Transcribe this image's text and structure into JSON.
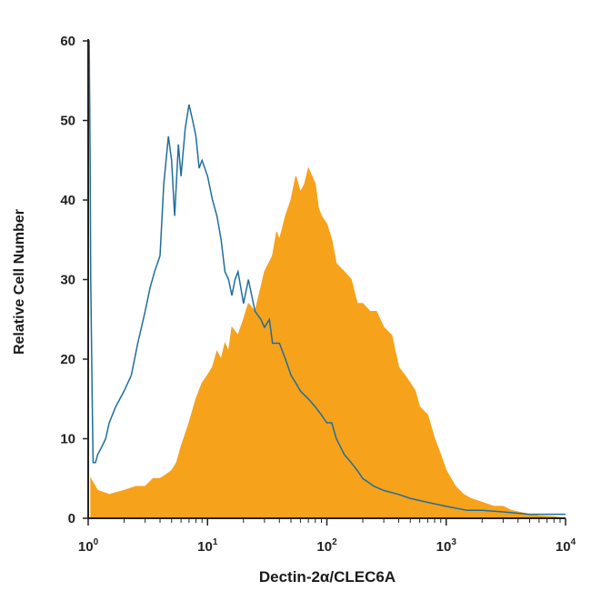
{
  "chart_data": {
    "type": "area",
    "title": "",
    "xlabel": "Dectin-2α/CLEC6A",
    "ylabel": "Relative Cell Number",
    "x_scale": "log",
    "xlim": [
      1,
      10000
    ],
    "ylim": [
      0,
      60
    ],
    "x_ticks": [
      {
        "base": "10",
        "exp": "0"
      },
      {
        "base": "10",
        "exp": "1"
      },
      {
        "base": "10",
        "exp": "2"
      },
      {
        "base": "10",
        "exp": "3"
      },
      {
        "base": "10",
        "exp": "4"
      }
    ],
    "y_ticks": [
      "0",
      "10",
      "20",
      "30",
      "40",
      "50",
      "60"
    ],
    "grid": false,
    "colors": {
      "stained": "#f7a21b",
      "isotype": "#1f6e9c",
      "axis": "#222222"
    },
    "series": [
      {
        "style": "filled",
        "x": [
          1.05,
          1.2,
          1.5,
          2.0,
          2.5,
          3.0,
          3.5,
          4.0,
          4.5,
          5.0,
          5.5,
          6.0,
          7.0,
          8.0,
          9.0,
          10.0,
          11.0,
          12.0,
          13.0,
          14.0,
          15.0,
          16.0,
          18.0,
          20.0,
          22.0,
          25.0,
          28.0,
          30.0,
          35.0,
          38.0,
          40.0,
          45.0,
          50.0,
          55.0,
          60.0,
          65.0,
          70.0,
          75.0,
          80.0,
          85.0,
          90.0,
          100.0,
          110.0,
          120.0,
          140.0,
          160.0,
          180.0,
          200.0,
          230.0,
          260.0,
          300.0,
          350.0,
          400.0,
          450.0,
          500.0,
          550.0,
          600.0,
          700.0,
          800.0,
          900.0,
          1000.0,
          1200.0,
          1400.0,
          1600.0,
          2000.0,
          2500.0,
          3000.0,
          3500.0,
          4000.0,
          5000.0,
          6000.0,
          8000.0,
          10000.0
        ],
        "values": [
          5,
          3.5,
          3,
          3.5,
          4,
          4,
          5,
          5,
          5.5,
          6,
          7,
          9,
          12,
          15,
          17,
          18,
          19,
          21,
          20,
          22,
          21,
          24,
          23,
          25,
          27,
          26,
          29,
          31,
          33,
          36,
          35,
          38,
          40,
          43,
          41,
          42,
          44,
          43,
          42,
          39,
          38,
          37,
          35,
          32,
          31,
          30,
          27,
          27,
          26,
          26,
          24,
          23,
          19,
          18,
          17,
          16,
          14,
          13,
          10,
          8,
          6,
          4,
          3,
          2.5,
          2,
          1.5,
          1.5,
          1,
          0.8,
          0.5,
          0.3,
          0.2,
          0
        ]
      },
      {
        "style": "line",
        "x": [
          1.0,
          1.02,
          1.04,
          1.05,
          1.08,
          1.1,
          1.15,
          1.2,
          1.3,
          1.4,
          1.5,
          1.7,
          2.0,
          2.3,
          2.6,
          3.0,
          3.3,
          3.6,
          4.0,
          4.3,
          4.7,
          5.0,
          5.3,
          5.7,
          6.0,
          6.5,
          7.0,
          7.5,
          8.0,
          8.5,
          9.0,
          10.0,
          11.0,
          12.0,
          13.0,
          14.0,
          15.0,
          16.0,
          17.0,
          18.0,
          20.0,
          22.0,
          25.0,
          28.0,
          30.0,
          33.0,
          35.0,
          40.0,
          45.0,
          50.0,
          55.0,
          60.0,
          70.0,
          80.0,
          90.0,
          100.0,
          110.0,
          120.0,
          140.0,
          160.0,
          180.0,
          200.0,
          250.0,
          300.0,
          400.0,
          500.0,
          700.0,
          1000.0,
          1500.0,
          2000.0,
          3000.0,
          5000.0,
          8000.0,
          10000.0
        ],
        "values": [
          60,
          60,
          44,
          30,
          15,
          7,
          7,
          8,
          9,
          10,
          12,
          14,
          16,
          18,
          22,
          26,
          29,
          31,
          33,
          42,
          48,
          45,
          38,
          47,
          43,
          49,
          52,
          50,
          48,
          44,
          45,
          43,
          40,
          38,
          35,
          31,
          30,
          28,
          30,
          31,
          27,
          30,
          26,
          25,
          24,
          25,
          22,
          22,
          20,
          18,
          17,
          16,
          15,
          14,
          13,
          12,
          12,
          10,
          8,
          7,
          6,
          5,
          4,
          3.5,
          3,
          2.5,
          2,
          1.5,
          1,
          1,
          0.8,
          0.5,
          0.5,
          0.5
        ]
      }
    ]
  }
}
